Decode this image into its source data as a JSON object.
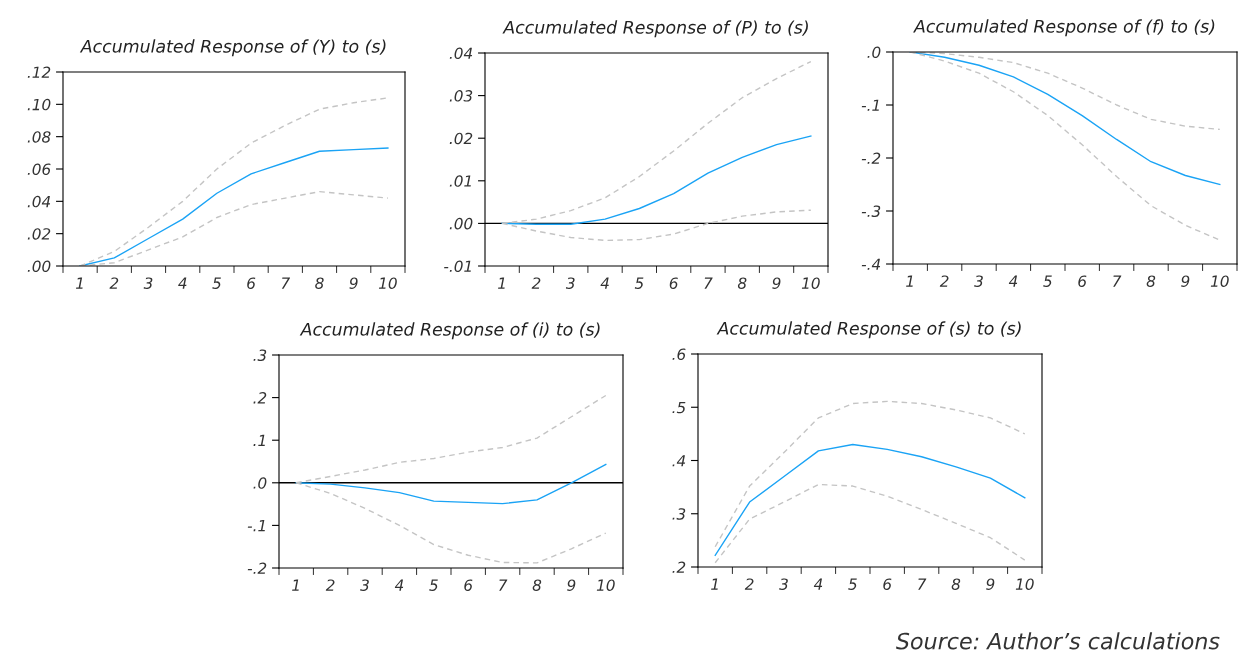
{
  "chart_data": [
    {
      "type": "line",
      "title": "Accumulated Response of (Y) to (s)",
      "categories": [
        "1",
        "2",
        "3",
        "4",
        "5",
        "6",
        "7",
        "8",
        "9",
        "10"
      ],
      "ylim": [
        0,
        0.12
      ],
      "yticks": [
        {
          "value": 0,
          "label": ".00"
        },
        {
          "value": 0.02,
          "label": ".02"
        },
        {
          "value": 0.04,
          "label": ".04"
        },
        {
          "value": 0.06,
          "label": ".06"
        },
        {
          "value": 0.08,
          "label": ".08"
        },
        {
          "value": 0.1,
          "label": ".10"
        },
        {
          "value": 0.12,
          "label": ".12"
        }
      ],
      "grid": false,
      "legend": false,
      "series": [
        {
          "color": "#1aa3f5",
          "line_style": "solid",
          "values": [
            0,
            0.005,
            0.017,
            0.029,
            0.045,
            0.057,
            0.064,
            0.071,
            0.072,
            0.073
          ]
        },
        {
          "color": "#c4c4c4",
          "line_style": "dashed",
          "values": [
            0,
            0.009,
            0.024,
            0.04,
            0.06,
            0.076,
            0.087,
            0.097,
            0.101,
            0.104
          ]
        },
        {
          "color": "#c4c4c4",
          "line_style": "dashed",
          "values": [
            0,
            0.002,
            0.01,
            0.018,
            0.03,
            0.038,
            0.042,
            0.046,
            0.044,
            0.042
          ]
        }
      ]
    },
    {
      "type": "line",
      "title": "Accumulated Response of (P) to (s)",
      "categories": [
        "1",
        "2",
        "3",
        "4",
        "5",
        "6",
        "7",
        "8",
        "9",
        "10"
      ],
      "ylim": [
        -0.01,
        0.04
      ],
      "yticks": [
        {
          "value": -0.01,
          "label": "-.01"
        },
        {
          "value": 0,
          "label": ".00"
        },
        {
          "value": 0.01,
          "label": ".01"
        },
        {
          "value": 0.02,
          "label": ".02"
        },
        {
          "value": 0.03,
          "label": ".03"
        },
        {
          "value": 0.04,
          "label": ".04"
        }
      ],
      "grid": false,
      "legend": false,
      "ref_lines": [
        {
          "axis": "y",
          "value": 0,
          "color": "#000000"
        }
      ],
      "series": [
        {
          "color": "#1aa3f5",
          "line_style": "solid",
          "values": [
            0,
            -0.0002,
            -0.0002,
            0.001,
            0.0035,
            0.007,
            0.0118,
            0.0155,
            0.0185,
            0.0205
          ]
        },
        {
          "color": "#c4c4c4",
          "line_style": "dashed",
          "values": [
            0,
            0.001,
            0.003,
            0.006,
            0.011,
            0.017,
            0.0235,
            0.0295,
            0.034,
            0.038
          ]
        },
        {
          "color": "#c4c4c4",
          "line_style": "dashed",
          "values": [
            0,
            -0.0018,
            -0.0033,
            -0.004,
            -0.0038,
            -0.0025,
            0,
            0.0017,
            0.0027,
            0.0031
          ]
        }
      ]
    },
    {
      "type": "line",
      "title": "Accumulated Response of (f) to (s)",
      "categories": [
        "1",
        "2",
        "3",
        "4",
        "5",
        "6",
        "7",
        "8",
        "9",
        "10"
      ],
      "ylim": [
        -0.4,
        0
      ],
      "yticks": [
        {
          "value": -0.4,
          "label": "-.4"
        },
        {
          "value": -0.3,
          "label": "-.3"
        },
        {
          "value": -0.2,
          "label": "-.2"
        },
        {
          "value": -0.1,
          "label": "-.1"
        },
        {
          "value": 0,
          "label": ".0"
        }
      ],
      "grid": false,
      "legend": false,
      "series": [
        {
          "color": "#1aa3f5",
          "line_style": "solid",
          "values": [
            0,
            -0.01,
            -0.025,
            -0.047,
            -0.08,
            -0.12,
            -0.165,
            -0.207,
            -0.233,
            -0.25
          ]
        },
        {
          "color": "#c4c4c4",
          "line_style": "dashed",
          "values": [
            0,
            -0.003,
            -0.01,
            -0.02,
            -0.04,
            -0.068,
            -0.1,
            -0.127,
            -0.14,
            -0.146
          ]
        },
        {
          "color": "#c4c4c4",
          "line_style": "dashed",
          "values": [
            0,
            -0.017,
            -0.04,
            -0.075,
            -0.12,
            -0.175,
            -0.235,
            -0.29,
            -0.327,
            -0.355
          ]
        }
      ]
    },
    {
      "type": "line",
      "title": "Accumulated Response of (i) to (s)",
      "categories": [
        "1",
        "2",
        "3",
        "4",
        "5",
        "6",
        "7",
        "8",
        "9",
        "10"
      ],
      "ylim": [
        -0.2,
        0.3
      ],
      "yticks": [
        {
          "value": -0.2,
          "label": "-.2"
        },
        {
          "value": -0.1,
          "label": "-.1"
        },
        {
          "value": 0,
          "label": ".0"
        },
        {
          "value": 0.1,
          "label": ".1"
        },
        {
          "value": 0.2,
          "label": ".2"
        },
        {
          "value": 0.3,
          "label": ".3"
        }
      ],
      "grid": false,
      "legend": false,
      "ref_lines": [
        {
          "axis": "y",
          "value": 0,
          "color": "#000000"
        }
      ],
      "series": [
        {
          "color": "#1aa3f5",
          "line_style": "solid",
          "values": [
            0,
            -0.003,
            -0.012,
            -0.023,
            -0.043,
            -0.046,
            -0.049,
            -0.04,
            0,
            0.043
          ]
        },
        {
          "color": "#c4c4c4",
          "line_style": "dashed",
          "values": [
            0,
            0.015,
            0.03,
            0.048,
            0.057,
            0.072,
            0.083,
            0.105,
            0.155,
            0.205
          ]
        },
        {
          "color": "#c4c4c4",
          "line_style": "dashed",
          "values": [
            0,
            -0.025,
            -0.06,
            -0.1,
            -0.145,
            -0.17,
            -0.187,
            -0.188,
            -0.155,
            -0.118
          ]
        }
      ]
    },
    {
      "type": "line",
      "title": "Accumulated Response of (s) to (s)",
      "categories": [
        "1",
        "2",
        "3",
        "4",
        "5",
        "6",
        "7",
        "8",
        "9",
        "10"
      ],
      "ylim": [
        0.2,
        0.6
      ],
      "yticks": [
        {
          "value": 0.2,
          "label": ".2"
        },
        {
          "value": 0.3,
          "label": ".3"
        },
        {
          "value": 0.4,
          "label": ".4"
        },
        {
          "value": 0.5,
          "label": ".5"
        },
        {
          "value": 0.6,
          "label": ".6"
        }
      ],
      "grid": false,
      "legend": false,
      "annotations": [
        "Source: Author’s calculations"
      ],
      "series": [
        {
          "color": "#1aa3f5",
          "line_style": "solid",
          "values": [
            0.222,
            0.322,
            0.37,
            0.418,
            0.43,
            0.421,
            0.407,
            0.388,
            0.367,
            0.33
          ]
        },
        {
          "color": "#c4c4c4",
          "line_style": "dashed",
          "values": [
            0.238,
            0.352,
            0.415,
            0.48,
            0.507,
            0.511,
            0.507,
            0.495,
            0.48,
            0.45
          ]
        },
        {
          "color": "#c4c4c4",
          "line_style": "dashed",
          "values": [
            0.208,
            0.29,
            0.322,
            0.355,
            0.352,
            0.333,
            0.308,
            0.282,
            0.255,
            0.213
          ]
        }
      ]
    }
  ]
}
